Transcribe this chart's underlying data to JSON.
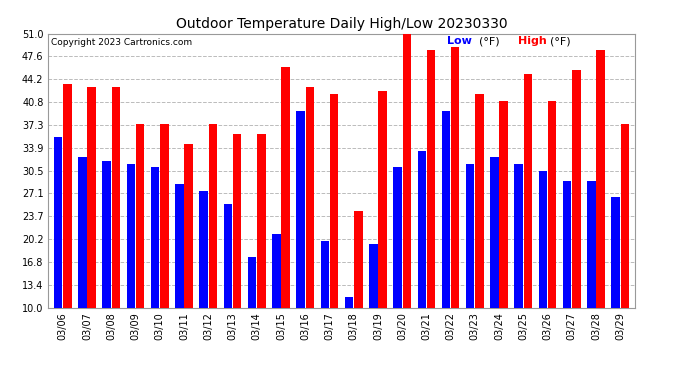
{
  "title": "Outdoor Temperature Daily High/Low 20230330",
  "copyright": "Copyright 2023 Cartronics.com",
  "legend_low": "Low",
  "legend_high": "High",
  "legend_unit": "(°F)",
  "dates": [
    "03/06",
    "03/07",
    "03/08",
    "03/09",
    "03/10",
    "03/11",
    "03/12",
    "03/13",
    "03/14",
    "03/15",
    "03/16",
    "03/17",
    "03/18",
    "03/19",
    "03/20",
    "03/21",
    "03/22",
    "03/23",
    "03/24",
    "03/25",
    "03/26",
    "03/27",
    "03/28",
    "03/29"
  ],
  "highs": [
    43.5,
    43.0,
    43.0,
    37.5,
    37.5,
    34.5,
    37.5,
    36.0,
    36.0,
    46.0,
    43.0,
    42.0,
    24.5,
    42.5,
    51.0,
    48.5,
    49.0,
    42.0,
    41.0,
    45.0,
    41.0,
    45.5,
    48.5,
    37.5
  ],
  "lows": [
    35.5,
    32.5,
    32.0,
    31.5,
    31.0,
    28.5,
    27.5,
    25.5,
    17.5,
    21.0,
    39.5,
    20.0,
    11.5,
    19.5,
    31.0,
    33.5,
    39.5,
    31.5,
    32.5,
    31.5,
    30.5,
    29.0,
    29.0,
    26.5
  ],
  "low_color": "#0000ff",
  "high_color": "#ff0000",
  "bg_color": "#ffffff",
  "grid_color": "#bbbbbb",
  "title_color": "#000000",
  "copyright_color": "#000000",
  "ymin": 10.0,
  "ymax": 51.0,
  "yticks": [
    10.0,
    13.4,
    16.8,
    20.2,
    23.7,
    27.1,
    30.5,
    33.9,
    37.3,
    40.8,
    44.2,
    47.6,
    51.0
  ]
}
